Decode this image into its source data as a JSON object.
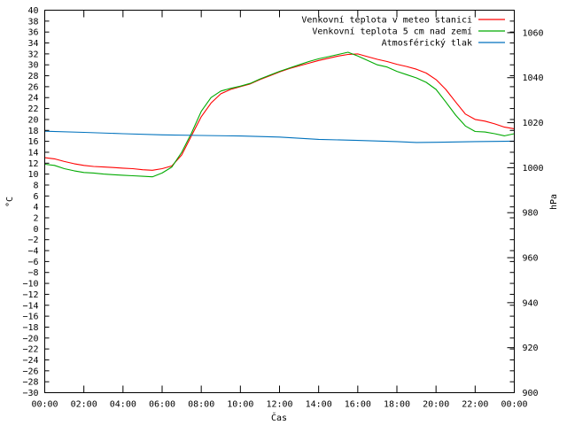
{
  "chart_data": {
    "type": "line",
    "title": "",
    "xlabel": "Čas",
    "ylabel": "°C",
    "y2label": "hPa",
    "grid": false,
    "legend_position": "top-right",
    "x_ticks": [
      "00:00",
      "02:00",
      "04:00",
      "06:00",
      "08:00",
      "10:00",
      "12:00",
      "14:00",
      "16:00",
      "18:00",
      "20:00",
      "22:00",
      "00:00"
    ],
    "xlim_hours": [
      0,
      24
    ],
    "ylim": [
      -30,
      40
    ],
    "y_ticks": [
      40,
      38,
      36,
      34,
      32,
      30,
      28,
      26,
      24,
      22,
      20,
      18,
      16,
      14,
      12,
      10,
      8,
      6,
      4,
      2,
      0,
      -2,
      -4,
      -6,
      -8,
      -10,
      -12,
      -14,
      -16,
      -18,
      -20,
      -22,
      -24,
      -26,
      -28,
      -30
    ],
    "y2lim": [
      900,
      1070
    ],
    "y2_ticks": [
      1060,
      1040,
      1020,
      1000,
      980,
      960,
      940,
      920,
      900
    ],
    "series": [
      {
        "name": "Venkovní teplota v meteo stanici",
        "color": "#ff0000",
        "axis": "left",
        "x": [
          0,
          0.5,
          1,
          1.5,
          2,
          2.5,
          3,
          3.5,
          4,
          4.5,
          5,
          5.5,
          6,
          6.5,
          7,
          7.5,
          8,
          8.5,
          9,
          9.5,
          10,
          10.5,
          11,
          11.5,
          12,
          12.5,
          13,
          13.5,
          14,
          14.5,
          15,
          15.5,
          16,
          16.5,
          17,
          17.5,
          18,
          18.5,
          19,
          19.5,
          20,
          20.5,
          21,
          21.5,
          22,
          22.5,
          23,
          23.5,
          24
        ],
        "values": [
          13.0,
          12.8,
          12.3,
          11.9,
          11.6,
          11.4,
          11.3,
          11.2,
          11.1,
          11.0,
          10.8,
          10.7,
          11.0,
          11.5,
          13.5,
          17.0,
          20.5,
          23.0,
          24.7,
          25.5,
          26.0,
          26.5,
          27.3,
          28.0,
          28.7,
          29.3,
          29.8,
          30.3,
          30.8,
          31.2,
          31.6,
          31.9,
          32.0,
          31.5,
          31.0,
          30.6,
          30.1,
          29.7,
          29.2,
          28.5,
          27.3,
          25.5,
          23.2,
          21.0,
          20.0,
          19.7,
          19.2,
          18.6,
          18.3
        ]
      },
      {
        "name": "Venkovní teplota 5 cm nad zemí",
        "color": "#00aa00",
        "axis": "left",
        "x": [
          0,
          0.5,
          1,
          1.5,
          2,
          2.5,
          3,
          3.5,
          4,
          4.5,
          5,
          5.5,
          6,
          6.5,
          7,
          7.5,
          8,
          8.5,
          9,
          9.5,
          10,
          10.5,
          11,
          11.5,
          12,
          12.5,
          13,
          13.5,
          14,
          14.5,
          15,
          15.5,
          16,
          16.5,
          17,
          17.5,
          18,
          18.5,
          19,
          19.5,
          20,
          20.5,
          21,
          21.5,
          22,
          22.5,
          23,
          23.5,
          24
        ],
        "values": [
          11.8,
          11.6,
          11.0,
          10.6,
          10.3,
          10.2,
          10.0,
          9.9,
          9.8,
          9.7,
          9.6,
          9.5,
          10.2,
          11.3,
          14.0,
          17.5,
          21.5,
          24.0,
          25.2,
          25.7,
          26.1,
          26.6,
          27.4,
          28.1,
          28.8,
          29.4,
          30.0,
          30.6,
          31.1,
          31.5,
          31.9,
          32.3,
          31.6,
          30.8,
          30.0,
          29.6,
          28.8,
          28.2,
          27.6,
          26.8,
          25.5,
          23.2,
          20.8,
          18.8,
          17.8,
          17.7,
          17.4,
          17.0,
          17.4
        ]
      },
      {
        "name": "Atmosférický tlak",
        "color": "#0072bd",
        "axis": "right",
        "x": [
          0,
          2,
          4,
          6,
          8,
          10,
          12,
          14,
          16,
          18,
          19,
          20,
          22,
          24
        ],
        "values": [
          1016.2,
          1015.7,
          1015.1,
          1014.6,
          1014.3,
          1014.1,
          1013.6,
          1012.6,
          1012.1,
          1011.6,
          1011.2,
          1011.3,
          1011.6,
          1011.8
        ]
      }
    ]
  }
}
